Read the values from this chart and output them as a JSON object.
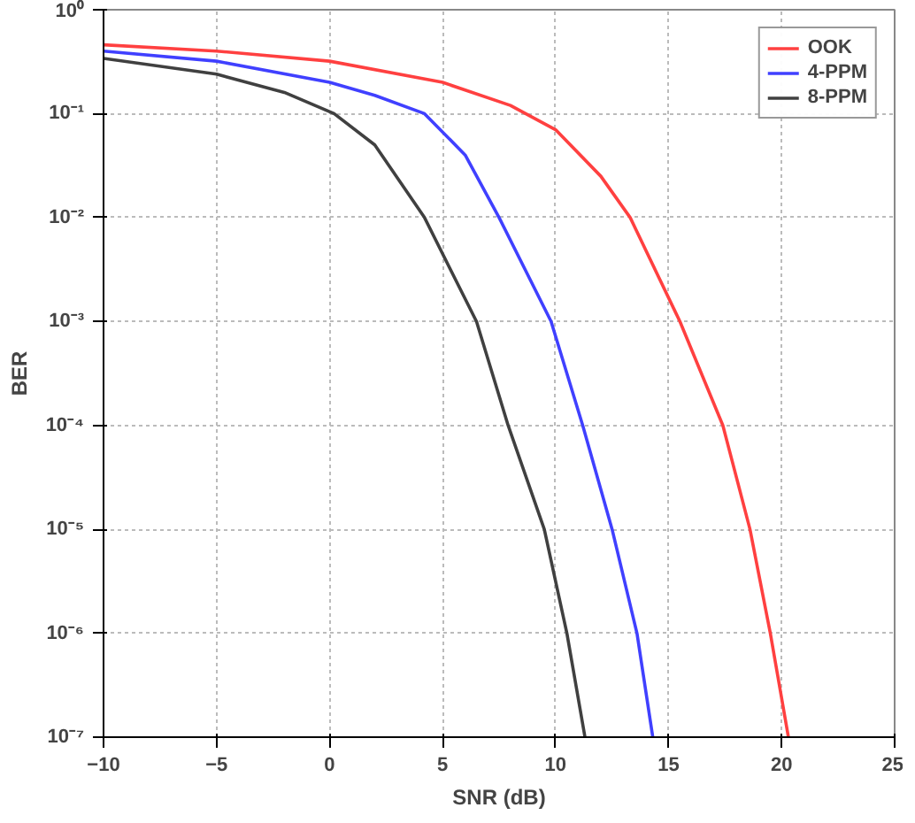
{
  "chart_data": {
    "type": "line",
    "xlabel": "SNR (dB)",
    "ylabel": "BER",
    "log": "y",
    "grid": true,
    "legend": "top right",
    "line_style": "solid",
    "marker": "none",
    "xlim": [
      -10,
      25
    ],
    "xticks": [
      -10,
      -5,
      0,
      5,
      10,
      15,
      20,
      25
    ],
    "ylim": [
      1e-07,
      1
    ],
    "yticks": [
      {
        "value": 1e-07,
        "label": "10⁻⁷"
      },
      {
        "value": 1e-06,
        "label": "10⁻⁶"
      },
      {
        "value": 1e-05,
        "label": "10⁻⁵"
      },
      {
        "value": 0.0001,
        "label": "10⁻⁴"
      },
      {
        "value": 0.001,
        "label": "10⁻³"
      },
      {
        "value": 0.01,
        "label": "10⁻²"
      },
      {
        "value": 0.1,
        "label": "10⁻¹"
      },
      {
        "value": 1,
        "label": "10⁰"
      }
    ],
    "series": [
      {
        "name": "OOK",
        "color": "#ff4040",
        "x": [
          -10,
          -5,
          0,
          5,
          8,
          10,
          12,
          13.3,
          15.5,
          17.4,
          18.6,
          19.5,
          20.3
        ],
        "values": [
          0.46,
          0.4,
          0.32,
          0.2,
          0.12,
          0.07,
          0.025,
          0.01,
          0.001,
          0.0001,
          1e-05,
          1e-06,
          1e-07
        ]
      },
      {
        "name": "4-PPM",
        "color": "#4040ff",
        "x": [
          -10,
          -5,
          0,
          2,
          4.2,
          6,
          7.5,
          9.8,
          11.2,
          12.5,
          13.6,
          14.3
        ],
        "values": [
          0.4,
          0.32,
          0.2,
          0.15,
          0.1,
          0.04,
          0.01,
          0.001,
          0.0001,
          1e-05,
          1e-06,
          1e-07
        ]
      },
      {
        "name": "8-PPM",
        "color": "#404040",
        "x": [
          -10,
          -5,
          -2,
          0.2,
          2,
          4.2,
          6.5,
          7.9,
          9.5,
          10.5,
          11.3
        ],
        "values": [
          0.34,
          0.24,
          0.16,
          0.1,
          0.05,
          0.01,
          0.001,
          0.0001,
          1e-05,
          1e-06,
          1e-07
        ]
      }
    ]
  }
}
